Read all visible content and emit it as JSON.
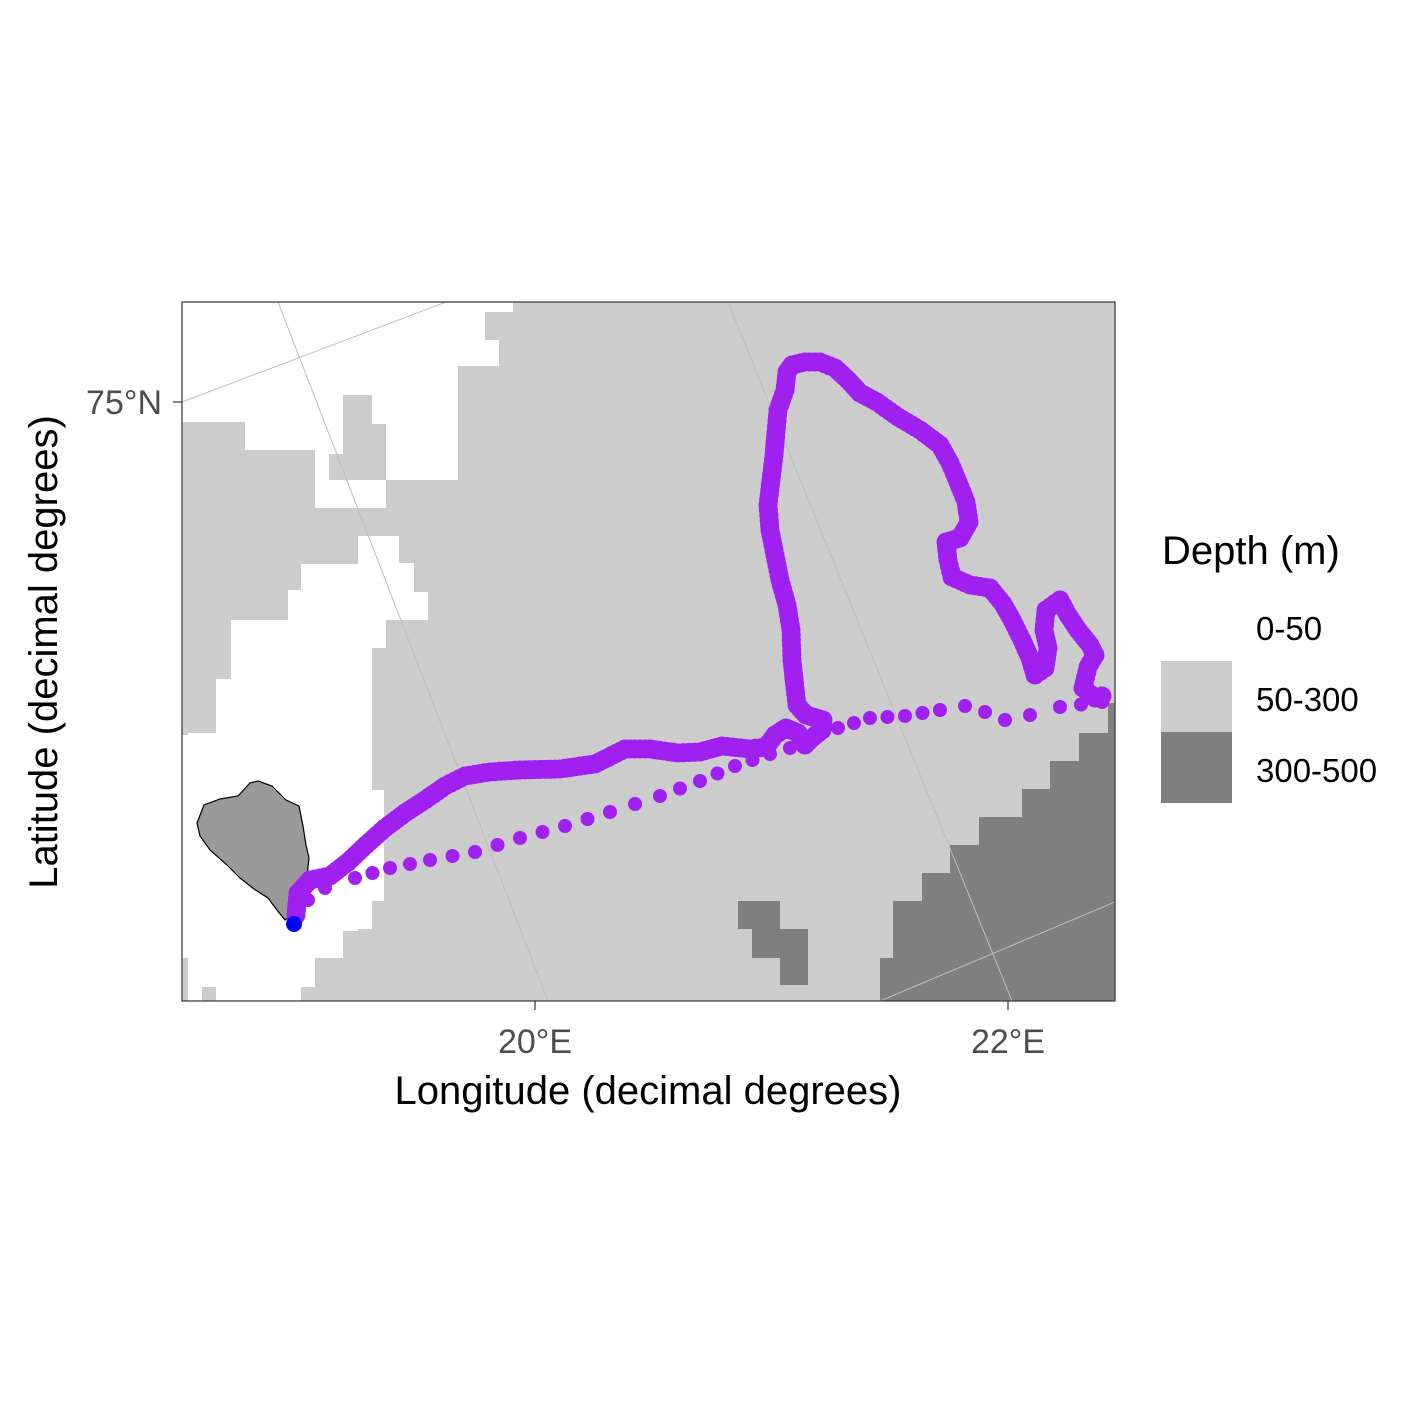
{
  "map": {
    "x_axis_title": "Longitude (decimal degrees)",
    "y_axis_title": "Latitude (decimal degrees)",
    "x_ticks": [
      {
        "label": "20°E",
        "lon": 20
      },
      {
        "label": "22°E",
        "lon": 22
      }
    ],
    "y_ticks": [
      {
        "label": "75°N",
        "lat": 75
      }
    ],
    "extent": {
      "lon": [
        18.5,
        22.45
      ],
      "lat": [
        74.58,
        75.07
      ]
    }
  },
  "legend": {
    "title": "Depth (m)",
    "items": [
      {
        "label": "0-50",
        "color": "#ffffff"
      },
      {
        "label": "50-300",
        "color": "#cccccc"
      },
      {
        "label": "300-500",
        "color": "#7f7f7f"
      }
    ]
  },
  "colors": {
    "track": "#a020f0",
    "start_point": "#0000ff",
    "island": "#999999",
    "graticule": "#bdbdbd"
  }
}
